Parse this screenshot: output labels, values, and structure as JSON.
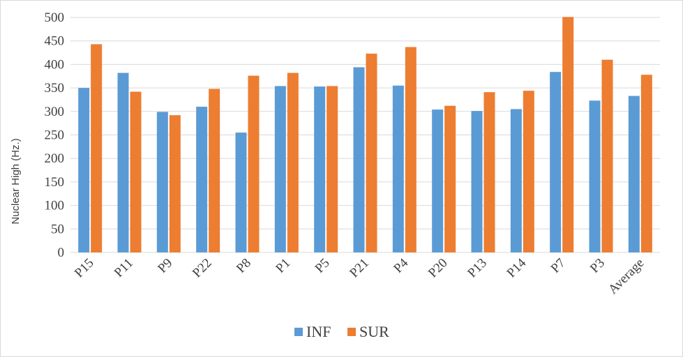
{
  "chart_data": {
    "type": "bar",
    "title": "",
    "xlabel": "",
    "ylabel": "Nuclear High (Hz.)",
    "ylim": [
      0,
      500
    ],
    "yticks": [
      0,
      50,
      100,
      150,
      200,
      250,
      300,
      350,
      400,
      450,
      500
    ],
    "grid": true,
    "legend_position": "bottom",
    "categories": [
      "P15",
      "P11",
      "P9",
      "P22",
      "P8",
      "P1",
      "P5",
      "P21",
      "P4",
      "P20",
      "P13",
      "P14",
      "P7",
      "P3",
      "Average"
    ],
    "series": [
      {
        "name": "INF",
        "color": "#5b9bd5",
        "values": [
          350,
          382,
          299,
          310,
          255,
          354,
          353,
          394,
          355,
          304,
          301,
          305,
          384,
          323,
          333
        ]
      },
      {
        "name": "SUR",
        "color": "#ed7d31",
        "values": [
          443,
          342,
          292,
          348,
          376,
          382,
          354,
          423,
          437,
          312,
          341,
          344,
          501,
          410,
          378
        ]
      }
    ]
  }
}
